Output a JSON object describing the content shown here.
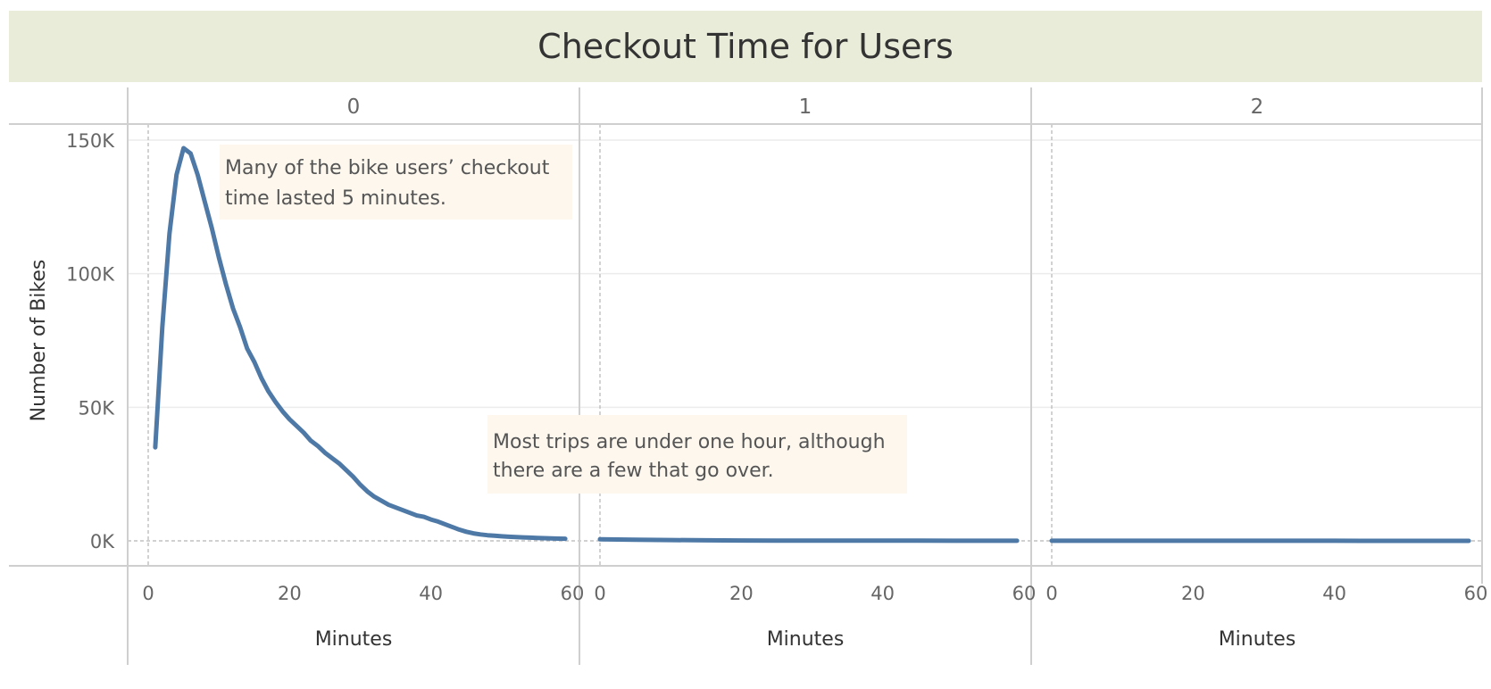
{
  "chart_data": {
    "type": "line",
    "title": "Checkout Time for Users",
    "xlabel": "Minutes",
    "ylabel": "Number of Bikes",
    "ylim": [
      0,
      150000
    ],
    "xlim": [
      0,
      60
    ],
    "y_ticks": [
      "0K",
      "50K",
      "100K",
      "150K"
    ],
    "y_tick_values": [
      0,
      50000,
      100000,
      150000
    ],
    "x_ticks": [
      "0",
      "20",
      "40",
      "60"
    ],
    "x_tick_values": [
      0,
      20,
      40,
      60
    ],
    "grid": true,
    "line_color": "#4e79a7",
    "panels": [
      {
        "header": "0",
        "x": [
          1,
          2,
          3,
          4,
          5,
          6,
          7,
          8,
          9,
          10,
          11,
          12,
          13,
          14,
          15,
          16,
          17,
          18,
          19,
          20,
          21,
          22,
          23,
          24,
          25,
          26,
          27,
          28,
          29,
          30,
          31,
          32,
          33,
          34,
          35,
          36,
          37,
          38,
          39,
          40,
          41,
          42,
          43,
          44,
          45,
          46,
          47,
          48,
          49,
          50,
          51,
          52,
          53,
          54,
          55,
          56,
          57,
          58,
          59
        ],
        "values": [
          35000,
          80000,
          115000,
          137000,
          147000,
          145000,
          137000,
          127000,
          117000,
          106000,
          96000,
          87000,
          80000,
          72000,
          67000,
          61000,
          56000,
          52000,
          48500,
          45500,
          43000,
          40500,
          37500,
          35500,
          33000,
          31000,
          29000,
          26500,
          24000,
          21000,
          18500,
          16500,
          15000,
          13500,
          12500,
          11500,
          10500,
          9500,
          9000,
          8000,
          7200,
          6200,
          5200,
          4200,
          3400,
          2800,
          2400,
          2100,
          1900,
          1700,
          1550,
          1400,
          1300,
          1200,
          1100,
          1000,
          900,
          850,
          800
        ]
      },
      {
        "header": "1",
        "x": [
          0,
          5,
          10,
          15,
          20,
          25,
          30,
          35,
          40,
          45,
          50,
          55,
          59
        ],
        "values": [
          600,
          400,
          300,
          200,
          150,
          100,
          100,
          100,
          80,
          60,
          50,
          40,
          30
        ]
      },
      {
        "header": "2",
        "x": [
          0,
          5,
          10,
          15,
          20,
          25,
          30,
          35,
          40,
          45,
          50,
          55,
          59
        ],
        "values": [
          40,
          35,
          30,
          30,
          25,
          25,
          20,
          20,
          20,
          15,
          15,
          10,
          10
        ]
      }
    ],
    "annotations": [
      {
        "lines": [
          "Many of the bike users’ checkout",
          "time lasted 5 minutes."
        ]
      },
      {
        "lines": [
          "Most trips are under one hour, although",
          "there are a few that go over."
        ]
      }
    ]
  }
}
